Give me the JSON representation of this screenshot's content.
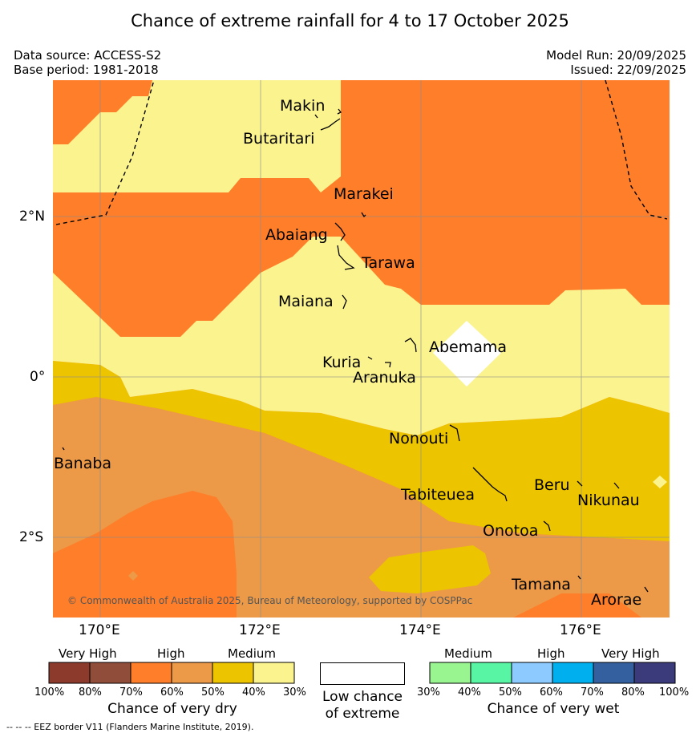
{
  "title": "Chance of extreme rainfall for 4 to 17 October 2025",
  "meta": {
    "data_source": "Data source: ACCESS-S2",
    "base_period": "Base period: 1981-2018",
    "model_run": "Model Run: 20/09/2025",
    "issued": "Issued: 22/09/2025"
  },
  "axes": {
    "lat_labels": [
      "2°N",
      "0°",
      "2°S"
    ],
    "lon_labels": [
      "170°E",
      "172°E",
      "174°E",
      "176°E"
    ]
  },
  "places": [
    "Makin",
    "Butaritari",
    "Marakei",
    "Abaiang",
    "Tarawa",
    "Maiana",
    "Abemama",
    "Kuria",
    "Aranuka",
    "Nonouti",
    "Banaba",
    "Tabiteuea",
    "Beru",
    "Nikunau",
    "Onotoa",
    "Tamana",
    "Arorae"
  ],
  "copyright": "© Commonwealth of Australia 2025, Bureau of Meteorology, supported by COSPPac",
  "legend": {
    "dry": {
      "categories": [
        "Very High",
        "High",
        "Medium"
      ],
      "colors": [
        "#8b3a2b",
        "#8f4d3a",
        "#ff7e2a",
        "#ec9a48",
        "#ecc400",
        "#fbf38d"
      ],
      "ticks": [
        "100%",
        "80%",
        "70%",
        "60%",
        "50%",
        "40%",
        "30%"
      ],
      "caption": "Chance of very dry"
    },
    "low": {
      "caption_line1": "Low chance",
      "caption_line2": "of extreme",
      "color": "#ffffff"
    },
    "wet": {
      "categories": [
        "Medium",
        "High",
        "Very High"
      ],
      "colors": [
        "#98f590",
        "#58f5a5",
        "#8ccaff",
        "#00b0ee",
        "#3560a0",
        "#3b3a7a"
      ],
      "ticks": [
        "30%",
        "40%",
        "50%",
        "60%",
        "70%",
        "80%",
        "100%"
      ],
      "caption": "Chance of very wet"
    }
  },
  "footer": "--  --  -- EEZ border V11 (Flanders Marine Institute, 2019).",
  "colors": {
    "very_high_dry": "#ff7e2a",
    "high_dry": "#ec9a48",
    "medium_dry_50": "#ecc400",
    "medium_dry_40": "#fbf38d",
    "low": "#ffffff"
  }
}
